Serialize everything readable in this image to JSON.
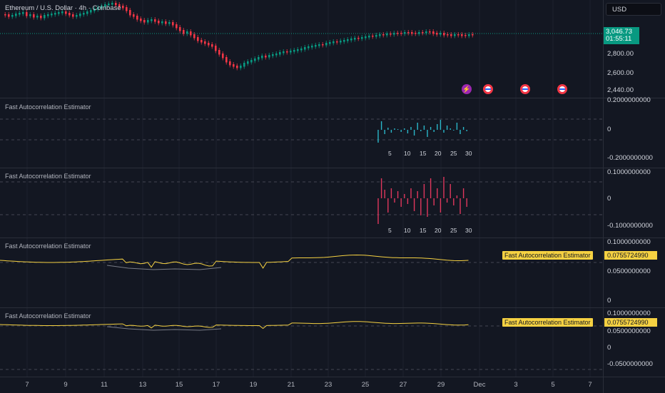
{
  "symbol": {
    "title": "Ethereum / U.S. Dollar · 4h · Coinbase"
  },
  "currency_button": "USD",
  "price": {
    "last": "3,046.73",
    "countdown": "01:55:11"
  },
  "price_axis": [
    "2,800.00",
    "2,600.00",
    "2,440.00"
  ],
  "panes": [
    {
      "title": "Fast Autocorrelation Estimator",
      "labels": [
        "0.2000000000",
        "0",
        "-0.2000000000"
      ],
      "lags": [
        "5",
        "10",
        "15",
        "20",
        "25",
        "30"
      ]
    },
    {
      "title": "Fast Autocorrelation Estimator",
      "labels": [
        "0.1000000000",
        "0",
        "-0.1000000000"
      ],
      "lags": [
        "5",
        "10",
        "15",
        "20",
        "25",
        "30"
      ]
    },
    {
      "title": "Fast Autocorrelation Estimator",
      "labels": [
        "0.1000000000",
        "0.0500000000",
        "0"
      ],
      "tag_name": "Fast Autocorrelation Estimator",
      "tag_value": "0.0755724990"
    },
    {
      "title": "Fast Autocorrelation Estimator",
      "labels": [
        "0.1000000000",
        "0.0500000000",
        "0",
        "-0.0500000000"
      ],
      "tag_name": "Fast Autocorrelation Estimator",
      "tag_value": "0.0755724990"
    }
  ],
  "time_axis": [
    "7",
    "9",
    "11",
    "13",
    "15",
    "17",
    "19",
    "21",
    "23",
    "25",
    "27",
    "29",
    "Dec",
    "3",
    "5",
    "7"
  ],
  "events": {
    "flash_icon": "lightning-icon",
    "flag_icon": "us-flag-icon"
  },
  "colors": {
    "up": "#089981",
    "down": "#f23645",
    "acf1": "#2ab7c9",
    "acf2": "#e0375d",
    "line": "#f5d142",
    "bg": "#131722"
  }
}
